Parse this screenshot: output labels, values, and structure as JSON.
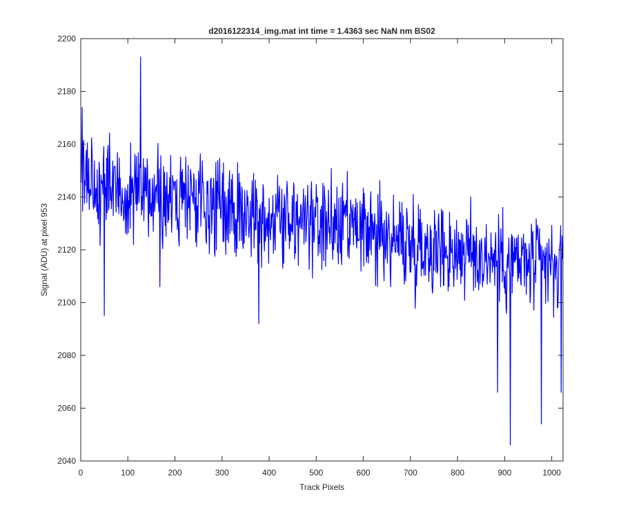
{
  "chart_data": {
    "type": "line",
    "title": "d2016122314_img.mat int time = 1.4363 sec  NaN nm BS02",
    "xlabel": "Track Pixels",
    "ylabel": "Signal (ADU) at pixel 953",
    "xlim": [
      0,
      1024
    ],
    "ylim": [
      2040,
      2200
    ],
    "x_ticks": [
      "0",
      "100",
      "200",
      "300",
      "400",
      "500",
      "600",
      "700",
      "800",
      "900",
      "1000"
    ],
    "y_ticks": [
      "2040",
      "2060",
      "2080",
      "2100",
      "2120",
      "2140",
      "2160",
      "2180",
      "2200"
    ],
    "grid": false,
    "line_color": "#0000ff",
    "series": [
      {
        "x_start": 1,
        "x_step": 1,
        "trend_start": 2146,
        "trend_end": 2112,
        "noise_amplitude": 12,
        "samples": 1024,
        "notable_points": [
          {
            "x": 3,
            "y": 2174
          },
          {
            "x": 50,
            "y": 2095
          },
          {
            "x": 127,
            "y": 2193
          },
          {
            "x": 168,
            "y": 2106
          },
          {
            "x": 378,
            "y": 2092
          },
          {
            "x": 885,
            "y": 2066
          },
          {
            "x": 912,
            "y": 2046
          },
          {
            "x": 978,
            "y": 2054
          },
          {
            "x": 1020,
            "y": 2066
          }
        ]
      }
    ]
  }
}
